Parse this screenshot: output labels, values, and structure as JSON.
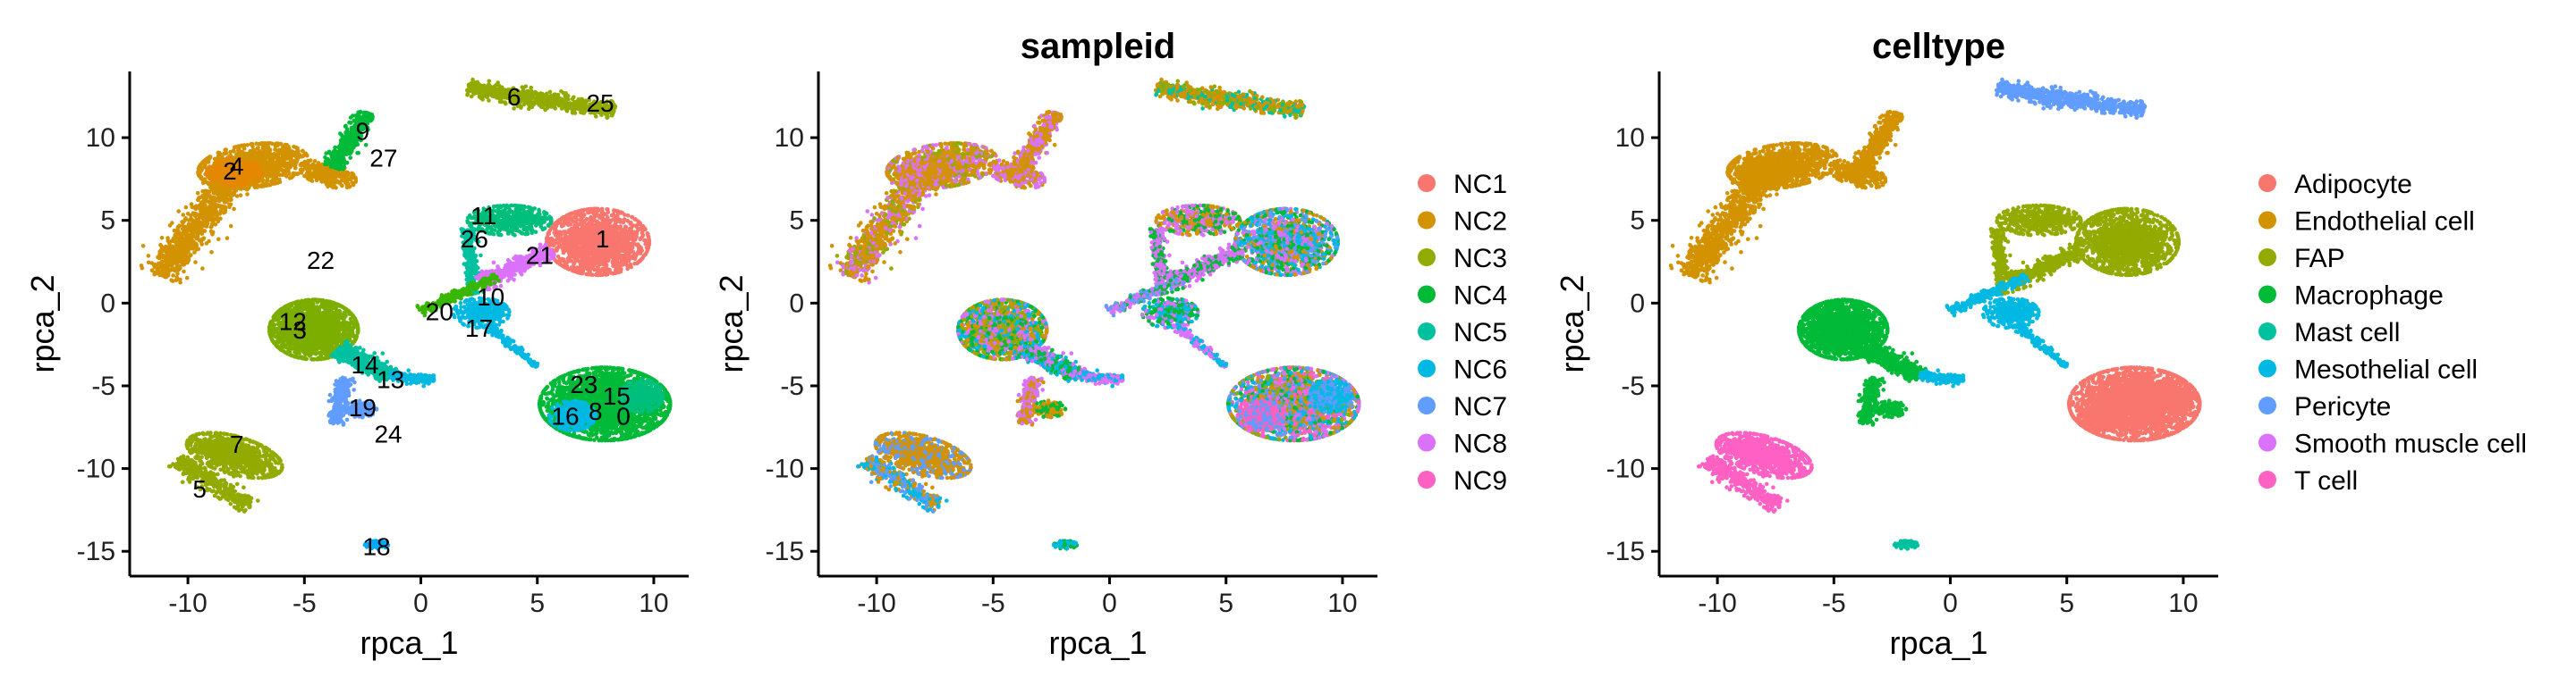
{
  "colors": {
    "NC1": "#F8766D",
    "NC2": "#D39200",
    "NC3": "#93AA00",
    "NC4": "#00BA38",
    "NC5": "#00C19F",
    "NC6": "#00B9E3",
    "NC7": "#619CFF",
    "NC8": "#DB72FB",
    "NC9": "#FF61C3"
  },
  "chart_data": [
    {
      "type": "scatter",
      "panel": "clusters",
      "title": "",
      "xlabel": "rpca_1",
      "ylabel": "rpca_2",
      "xlim": [
        -12.5,
        11.5
      ],
      "ylim": [
        -16.5,
        14
      ],
      "xticks": [
        -10,
        -5,
        0,
        5,
        10
      ],
      "yticks": [
        -15,
        -10,
        -5,
        0,
        5,
        10
      ],
      "xtick_labels": [
        "-10",
        "-5",
        "0",
        "5",
        "10"
      ],
      "ytick_labels": [
        "-15",
        "-10",
        "-5",
        "0",
        "5",
        "10"
      ],
      "legend": "none",
      "cluster_labels": [
        {
          "label": "0",
          "x": 8.7,
          "y": -6.8
        },
        {
          "label": "1",
          "x": 7.8,
          "y": 3.9
        },
        {
          "label": "2",
          "x": -8.2,
          "y": 8.0
        },
        {
          "label": "3",
          "x": -5.2,
          "y": -1.6
        },
        {
          "label": "4",
          "x": -7.9,
          "y": 8.3
        },
        {
          "label": "5",
          "x": -9.5,
          "y": -11.2
        },
        {
          "label": "6",
          "x": 4.0,
          "y": 12.5
        },
        {
          "label": "7",
          "x": -7.9,
          "y": -8.5
        },
        {
          "label": "8",
          "x": 7.5,
          "y": -6.5
        },
        {
          "label": "9",
          "x": -2.5,
          "y": 10.4
        },
        {
          "label": "10",
          "x": 3.0,
          "y": 0.4
        },
        {
          "label": "11",
          "x": 2.7,
          "y": 5.3
        },
        {
          "label": "12",
          "x": -5.5,
          "y": -1.1
        },
        {
          "label": "13",
          "x": -1.3,
          "y": -4.6
        },
        {
          "label": "14",
          "x": -2.4,
          "y": -3.7
        },
        {
          "label": "15",
          "x": 8.4,
          "y": -5.6
        },
        {
          "label": "16",
          "x": 6.2,
          "y": -6.8
        },
        {
          "label": "17",
          "x": 2.5,
          "y": -1.5
        },
        {
          "label": "18",
          "x": -1.9,
          "y": -14.7
        },
        {
          "label": "19",
          "x": -2.5,
          "y": -6.3
        },
        {
          "label": "20",
          "x": 0.8,
          "y": -0.5
        },
        {
          "label": "21",
          "x": 5.1,
          "y": 2.9
        },
        {
          "label": "22",
          "x": -4.3,
          "y": 2.6
        },
        {
          "label": "23",
          "x": 7.0,
          "y": -4.9
        },
        {
          "label": "24",
          "x": -1.4,
          "y": -7.9
        },
        {
          "label": "25",
          "x": 7.7,
          "y": 12.1
        },
        {
          "label": "26",
          "x": 2.3,
          "y": 3.9
        },
        {
          "label": "27",
          "x": -1.6,
          "y": 8.8
        }
      ]
    },
    {
      "type": "scatter",
      "panel": "sampleid",
      "title": "sampleid",
      "xlabel": "rpca_1",
      "ylabel": "rpca_2",
      "xlim": [
        -12.5,
        11.5
      ],
      "ylim": [
        -16.5,
        14
      ],
      "xticks": [
        -10,
        -5,
        0,
        5,
        10
      ],
      "yticks": [
        -15,
        -10,
        -5,
        0,
        5,
        10
      ],
      "xtick_labels": [
        "-10",
        "-5",
        "0",
        "5",
        "10"
      ],
      "ytick_labels": [
        "-15",
        "-10",
        "-5",
        "0",
        "5",
        "10"
      ],
      "legend": "right",
      "legend_entries": [
        {
          "name": "NC1",
          "color": "#F8766D"
        },
        {
          "name": "NC2",
          "color": "#D39200"
        },
        {
          "name": "NC3",
          "color": "#93AA00"
        },
        {
          "name": "NC4",
          "color": "#00BA38"
        },
        {
          "name": "NC5",
          "color": "#00C19F"
        },
        {
          "name": "NC6",
          "color": "#00B9E3"
        },
        {
          "name": "NC7",
          "color": "#619CFF"
        },
        {
          "name": "NC8",
          "color": "#DB72FB"
        },
        {
          "name": "NC9",
          "color": "#FF61C3"
        }
      ]
    },
    {
      "type": "scatter",
      "panel": "celltype",
      "title": "celltype",
      "xlabel": "rpca_1",
      "ylabel": "rpca_2",
      "xlim": [
        -12.5,
        11.5
      ],
      "ylim": [
        -16.5,
        14
      ],
      "xticks": [
        -10,
        -5,
        0,
        5,
        10
      ],
      "yticks": [
        -15,
        -10,
        -5,
        0,
        5,
        10
      ],
      "xtick_labels": [
        "-10",
        "-5",
        "0",
        "5",
        "10"
      ],
      "ytick_labels": [
        "-15",
        "-10",
        "-5",
        "0",
        "5",
        "10"
      ],
      "legend": "right",
      "legend_entries": [
        {
          "name": "Adipocyte",
          "color": "#F8766D"
        },
        {
          "name": "Endothelial cell",
          "color": "#D39200"
        },
        {
          "name": "FAP",
          "color": "#93AA00"
        },
        {
          "name": "Macrophage",
          "color": "#00BA38"
        },
        {
          "name": "Mast cell",
          "color": "#00C19F"
        },
        {
          "name": "Mesothelial cell",
          "color": "#00B9E3"
        },
        {
          "name": "Pericyte",
          "color": "#619CFF"
        },
        {
          "name": "Smooth muscle cell",
          "color": "#DB72FB"
        },
        {
          "name": "T cell",
          "color": "#FF61C3"
        }
      ],
      "cell_populations": [
        {
          "celltype": "Adipocyte",
          "color": "#F8766D",
          "center": [
            7.7,
            -6.2
          ]
        },
        {
          "celltype": "Endothelial cell",
          "color": "#D39200",
          "center": [
            -7.5,
            7.5
          ]
        },
        {
          "celltype": "FAP",
          "color": "#93AA00",
          "center": [
            5.5,
            3.8
          ]
        },
        {
          "celltype": "Macrophage",
          "color": "#00BA38",
          "center": [
            -4.5,
            -2.0
          ]
        },
        {
          "celltype": "Mast cell",
          "color": "#00C19F",
          "center": [
            -1.9,
            -14.6
          ]
        },
        {
          "celltype": "Mesothelial cell",
          "color": "#00B9E3",
          "center": [
            2.5,
            -0.5
          ]
        },
        {
          "celltype": "Pericyte",
          "color": "#619CFF",
          "center": [
            5.3,
            12.0
          ]
        },
        {
          "celltype": "T cell",
          "color": "#FF61C3",
          "center": [
            -8.0,
            -9.5
          ]
        }
      ]
    }
  ]
}
